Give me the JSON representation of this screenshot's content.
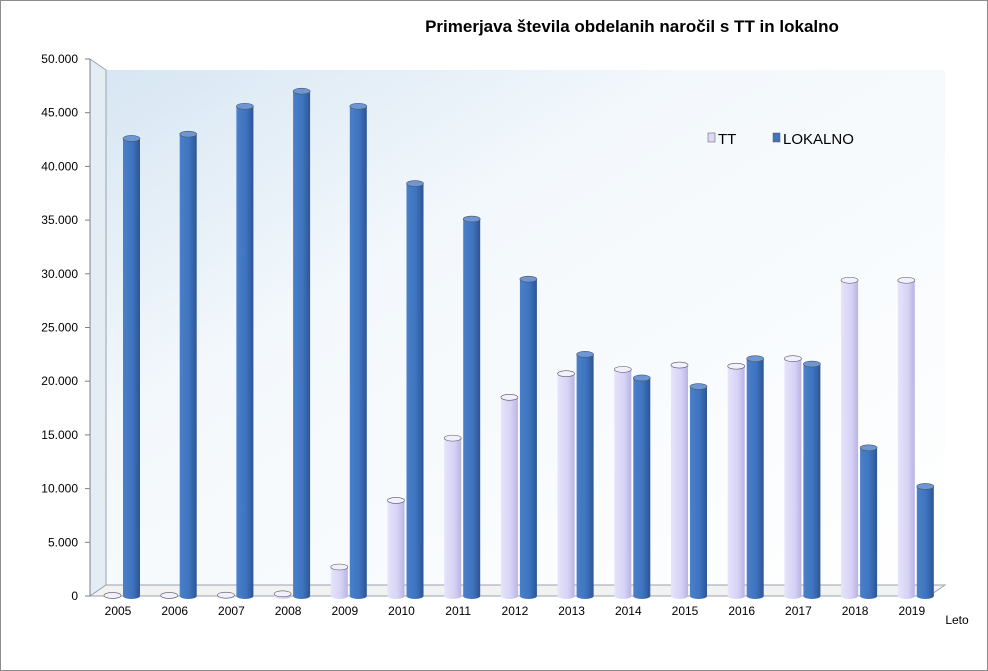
{
  "chart_data": {
    "type": "bar",
    "title": "Primerjava števila obdelanih naročil s TT in lokalno",
    "xlabel": "Leto",
    "ylabel": "",
    "ylim": [
      0,
      50000
    ],
    "y_ticks": [
      "0",
      "5.000",
      "10.000",
      "15.000",
      "20.000",
      "25.000",
      "30.000",
      "35.000",
      "40.000",
      "45.000",
      "50.000"
    ],
    "categories": [
      "2005",
      "2006",
      "2007",
      "2008",
      "2009",
      "2010",
      "2011",
      "2012",
      "2013",
      "2014",
      "2015",
      "2016",
      "2017",
      "2018",
      "2019"
    ],
    "series": [
      {
        "name": "TT",
        "color": "#dcd8f8",
        "values": [
          50,
          50,
          80,
          200,
          2700,
          8900,
          14700,
          18500,
          20700,
          21100,
          21500,
          21400,
          22100,
          29400,
          29400
        ]
      },
      {
        "name": "LOKALNO",
        "color": "#3f74c0",
        "values": [
          42600,
          43000,
          45600,
          47000,
          45600,
          38400,
          35100,
          29500,
          22500,
          20300,
          19500,
          22100,
          21600,
          13800,
          10200
        ]
      }
    ],
    "legend_position": "top-right",
    "grid": false
  }
}
